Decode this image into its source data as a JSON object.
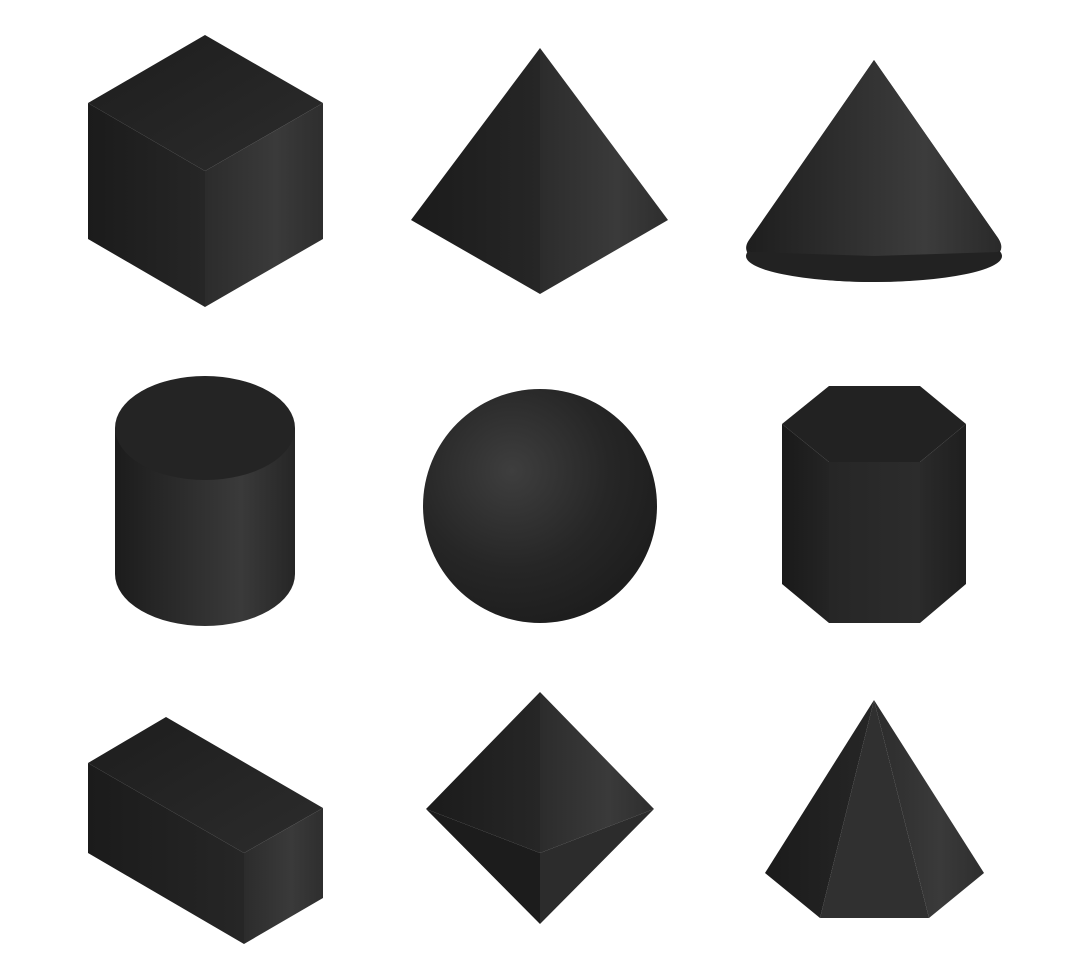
{
  "background_color": "#ffffff",
  "shape_color": "#232323",
  "shapes": [
    {
      "id": "cube",
      "row": 1,
      "col": 1
    },
    {
      "id": "tetrahedron",
      "row": 1,
      "col": 2
    },
    {
      "id": "cone",
      "row": 1,
      "col": 3
    },
    {
      "id": "cylinder",
      "row": 2,
      "col": 1
    },
    {
      "id": "sphere",
      "row": 2,
      "col": 2
    },
    {
      "id": "hexagonal-prism",
      "row": 2,
      "col": 3
    },
    {
      "id": "rectangular-prism",
      "row": 3,
      "col": 1
    },
    {
      "id": "octahedron",
      "row": 3,
      "col": 2
    },
    {
      "id": "pentagonal-pyramid",
      "row": 3,
      "col": 3
    }
  ]
}
